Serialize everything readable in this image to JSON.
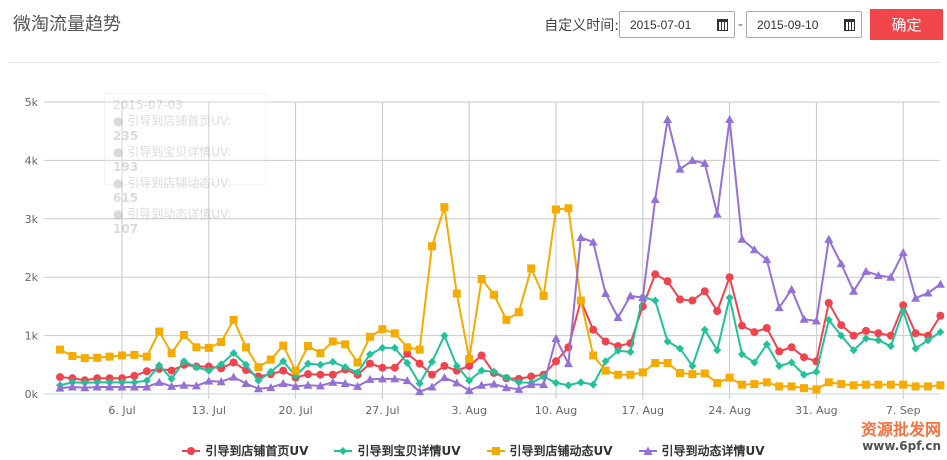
{
  "header": {
    "title": "微淘流量趋势",
    "range_label": "自定义时间:",
    "start_date": "2015-07-01",
    "end_date": "2015-09-10",
    "separator": "-",
    "confirm": "确定"
  },
  "tooltip": {
    "date": "2015-07-03",
    "rows": [
      {
        "label": "引导到店铺首页UV: ",
        "value": "235"
      },
      {
        "label": "引导到宝贝详情UV: ",
        "value": "193"
      },
      {
        "label": "引导到店铺动态UV: ",
        "value": "615"
      },
      {
        "label": "引导到动态详情UV: ",
        "value": "107"
      }
    ]
  },
  "watermark": {
    "text": "资源批发网",
    "url": "www.6pf.cn"
  },
  "chart_data": {
    "type": "line",
    "title": "微淘流量趋势",
    "x_start": "2015-07-01",
    "x_count": 72,
    "xticks": [
      "6. Jul",
      "13. Jul",
      "20. Jul",
      "27. Jul",
      "3. Aug",
      "10. Aug",
      "17. Aug",
      "24. Aug",
      "31. Aug",
      "7. Sep"
    ],
    "xtick_index": [
      5,
      12,
      19,
      26,
      33,
      40,
      47,
      54,
      61,
      68
    ],
    "yticks": [
      "0k",
      "1k",
      "2k",
      "3k",
      "4k",
      "5k"
    ],
    "ylim": [
      0,
      5000
    ],
    "grid": true,
    "legend": "bottom",
    "series": [
      {
        "name": "引导到店铺首页UV",
        "color": "#f0434d",
        "marker": "circle",
        "values": [
          290,
          270,
          235,
          270,
          270,
          270,
          310,
          390,
          430,
          400,
          500,
          470,
          470,
          440,
          540,
          410,
          300,
          340,
          400,
          280,
          340,
          330,
          330,
          420,
          330,
          520,
          450,
          450,
          690,
          520,
          330,
          480,
          400,
          480,
          660,
          360,
          270,
          260,
          300,
          330,
          560,
          800,
          1600,
          1100,
          900,
          820,
          870,
          1500,
          2050,
          1930,
          1620,
          1600,
          1760,
          1420,
          2000,
          1170,
          1060,
          1130,
          730,
          800,
          630,
          560,
          1560,
          1180,
          1000,
          1080,
          1040,
          1000,
          1520,
          1040,
          1000,
          1340
        ]
      },
      {
        "name": "引导到宝贝详情UV",
        "color": "#22c19a",
        "marker": "diamond",
        "values": [
          150,
          200,
          193,
          200,
          200,
          200,
          200,
          230,
          490,
          260,
          560,
          460,
          400,
          510,
          700,
          500,
          230,
          380,
          560,
          310,
          520,
          500,
          550,
          460,
          370,
          680,
          790,
          790,
          530,
          180,
          550,
          1000,
          480,
          230,
          400,
          380,
          280,
          200,
          190,
          300,
          190,
          150,
          200,
          160,
          560,
          740,
          720,
          1660,
          1600,
          900,
          780,
          480,
          1100,
          750,
          1650,
          680,
          540,
          850,
          480,
          540,
          330,
          380,
          1270,
          1000,
          750,
          950,
          920,
          820,
          1420,
          780,
          920,
          1060
        ]
      },
      {
        "name": "引导到店铺动态UV",
        "color": "#f5ab00",
        "marker": "square",
        "values": [
          760,
          650,
          615,
          620,
          640,
          660,
          670,
          640,
          1070,
          700,
          1010,
          800,
          790,
          890,
          1270,
          800,
          460,
          590,
          830,
          400,
          820,
          700,
          900,
          850,
          540,
          980,
          1110,
          1040,
          800,
          760,
          2530,
          3200,
          1720,
          600,
          1970,
          1700,
          1270,
          1400,
          2150,
          1680,
          3160,
          3180,
          1600,
          660,
          400,
          330,
          330,
          370,
          530,
          530,
          360,
          340,
          350,
          190,
          280,
          160,
          170,
          200,
          130,
          130,
          100,
          80,
          200,
          170,
          150,
          160,
          160,
          160,
          160,
          130,
          130,
          150
        ]
      },
      {
        "name": "引导到动态详情UV",
        "color": "#9570d6",
        "marker": "triangle",
        "values": [
          100,
          120,
          107,
          120,
          120,
          120,
          120,
          120,
          200,
          130,
          150,
          140,
          220,
          210,
          290,
          180,
          90,
          110,
          180,
          130,
          150,
          140,
          200,
          180,
          130,
          250,
          260,
          260,
          230,
          40,
          120,
          280,
          190,
          60,
          150,
          170,
          110,
          80,
          160,
          160,
          950,
          520,
          2680,
          2600,
          1720,
          1310,
          1680,
          1650,
          3330,
          4700,
          3850,
          4000,
          3950,
          3080,
          4700,
          2650,
          2470,
          2300,
          1480,
          1790,
          1280,
          1250,
          2650,
          2230,
          1760,
          2100,
          2030,
          2000,
          2420,
          1640,
          1730,
          1880
        ]
      }
    ]
  }
}
